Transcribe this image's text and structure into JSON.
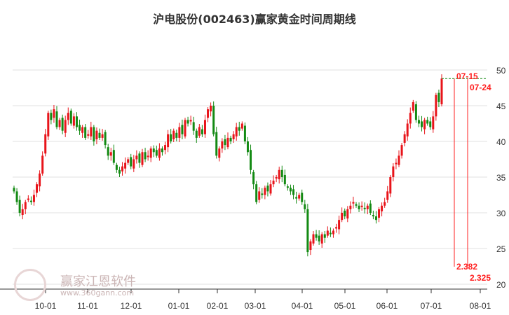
{
  "chart_data": {
    "type": "candlestick",
    "title": "沪电股份(002463)赢家黄金时间周期线",
    "ylim": [
      20,
      51
    ],
    "y_ticks": [
      20,
      25,
      30,
      35,
      40,
      45,
      50
    ],
    "x_ticks": [
      "10-01",
      "11-01",
      "12-01",
      "01-01",
      "02-01",
      "03-01",
      "04-01",
      "05-01",
      "06-01",
      "07-01",
      "08-01"
    ],
    "grid": true,
    "up_color": "#e8141a",
    "down_color": "#138a13",
    "close": [
      33,
      31.5,
      30,
      30.5,
      31.5,
      32,
      31.5,
      32.5,
      34,
      35.5,
      38,
      41,
      44,
      43,
      44.5,
      42,
      43,
      41.5,
      43,
      44,
      42.5,
      43.5,
      42,
      41.5,
      42,
      40.5,
      41,
      42,
      40,
      41.5,
      40.5,
      41,
      39.5,
      38,
      38.5,
      37,
      36,
      35.5,
      36.5,
      37,
      37.5,
      36.5,
      37.5,
      38,
      37,
      38.5,
      37.5,
      38,
      39,
      38.5,
      38,
      39,
      38.5,
      39.5,
      41,
      40,
      41.5,
      40.5,
      42,
      41,
      43,
      42.5,
      43,
      41.5,
      40.5,
      42,
      41,
      43,
      44.5,
      45,
      41,
      38,
      39,
      40,
      39.5,
      40.5,
      40,
      41,
      42,
      41.5,
      42.5,
      40,
      38.5,
      36,
      34,
      31.5,
      33,
      32.5,
      33.5,
      33,
      34,
      34.5,
      35,
      36,
      35,
      34,
      33.5,
      33,
      32.5,
      32,
      32.5,
      31.5,
      30.5,
      24.5,
      26,
      27,
      26.5,
      26,
      27,
      26.5,
      27.5,
      27,
      27.5,
      28,
      29,
      30,
      29.5,
      30.5,
      31,
      31.5,
      31,
      30.5,
      31,
      30.5,
      31,
      30,
      29.5,
      29,
      30.5,
      31,
      31.5,
      33,
      35,
      36.5,
      37,
      38,
      39.5,
      41,
      42.5,
      44,
      45.5,
      43,
      42.5,
      42,
      43,
      42.5,
      42,
      43.5,
      46.5,
      45.5,
      48.8
    ],
    "reference_line": {
      "value": 48.8,
      "color": "#138a13",
      "style": "dashed"
    },
    "cycle_lines": [
      {
        "date": "07-15",
        "value": "2.382",
        "color": "#ff2020"
      },
      {
        "date": "07-24",
        "value": "2.325",
        "color": "#ff2020"
      }
    ]
  },
  "watermark": {
    "brand": "赢家江恩软件",
    "url": "www.360gann.com"
  }
}
